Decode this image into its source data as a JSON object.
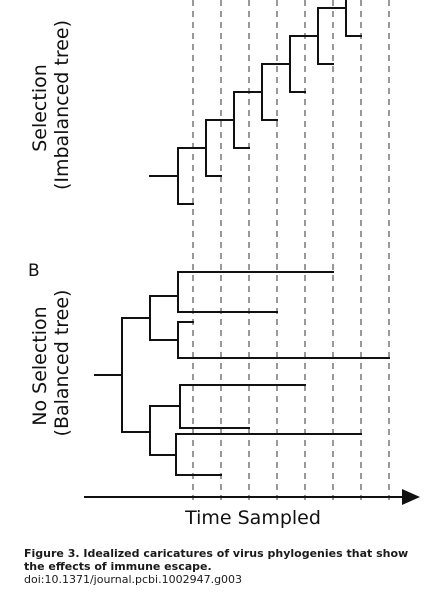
{
  "figure": {
    "panel_a": {
      "y_title_line1": "Selection",
      "y_title_line2": "(Imbalanced tree)"
    },
    "panel_b": {
      "label": "B",
      "y_title_line1": "No Selection",
      "y_title_line2": "(Balanced tree)"
    },
    "x_axis_title": "Time Sampled"
  },
  "caption": {
    "title": "Figure 3. Idealized caricatures of virus phylogenies that show the effects of immune escape.",
    "doi": "doi:10.1371/journal.pcbi.1002947.g003"
  }
}
